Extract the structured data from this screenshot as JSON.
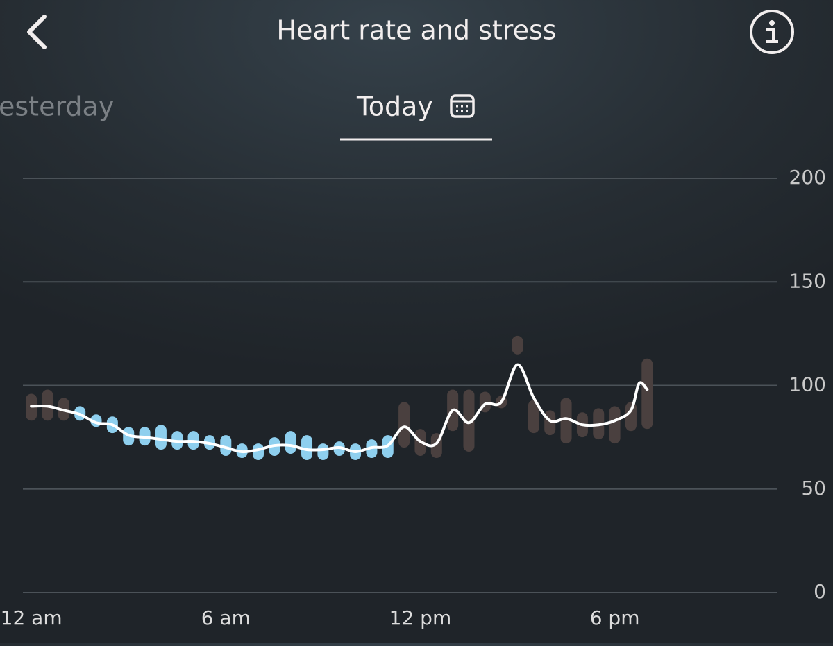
{
  "header": {
    "title": "Heart rate and stress",
    "tabs": [
      "esterday",
      "Today"
    ]
  },
  "chart_data": {
    "type": "line",
    "xlim": [
      -0.26,
      23.02
    ],
    "xticks": [
      {
        "value": 0,
        "label": "12 am"
      },
      {
        "value": 6,
        "label": "6 am"
      },
      {
        "value": 12,
        "label": "12 pm"
      },
      {
        "value": 18,
        "label": "6 pm"
      }
    ],
    "ylim": [
      0,
      200
    ],
    "yticks": [
      0,
      50,
      100,
      150,
      200
    ],
    "grid": true,
    "series": [
      {
        "color": "#ffffff",
        "x": [
          0,
          0.5,
          1,
          1.5,
          2,
          2.5,
          3,
          3.5,
          4,
          4.5,
          5,
          5.5,
          6,
          6.5,
          7,
          7.5,
          8,
          8.5,
          9,
          9.5,
          10,
          10.5,
          11,
          11.5,
          12,
          12.5,
          13,
          13.5,
          14,
          14.5,
          15,
          15.5,
          16,
          16.5,
          17,
          17.5,
          18,
          18.5,
          18.75,
          19
        ],
        "values": [
          90,
          90,
          88,
          86,
          82,
          81,
          76,
          75,
          74,
          73,
          73,
          72,
          70,
          68,
          69,
          71,
          71,
          69,
          69,
          70,
          68,
          70,
          71,
          80,
          73,
          72,
          88,
          82,
          91,
          92,
          110,
          94,
          83,
          84,
          81,
          81,
          83,
          88,
          101,
          98
        ]
      }
    ],
    "bars": {
      "x": [
        0,
        0.5,
        1,
        1.5,
        2,
        2.5,
        3,
        3.5,
        4,
        4.5,
        5,
        5.5,
        6,
        6.5,
        7,
        7.5,
        8,
        8.5,
        9,
        9.5,
        10,
        10.5,
        11,
        11.5,
        12,
        12.5,
        13,
        13.5,
        14,
        14.5,
        15,
        15.5,
        16,
        16.5,
        17,
        17.5,
        18,
        18.5,
        19
      ],
      "low": [
        83,
        83,
        83,
        83,
        80,
        77,
        71,
        71,
        69,
        69,
        69,
        69,
        66,
        65,
        64,
        66,
        67,
        64,
        64,
        66,
        64,
        65,
        65,
        70,
        66,
        65,
        78,
        68,
        87,
        89,
        115,
        77,
        76,
        72,
        75,
        74,
        72,
        78,
        79
      ],
      "high": [
        96,
        98,
        94,
        90,
        86,
        85,
        80,
        80,
        81,
        78,
        78,
        76,
        76,
        72,
        72,
        75,
        78,
        76,
        72,
        73,
        72,
        74,
        76,
        92,
        79,
        77,
        98,
        98,
        97,
        95,
        124,
        93,
        88,
        94,
        87,
        89,
        90,
        92,
        113
      ],
      "colors": [
        "#4a403f",
        "#4a403f",
        "#4a403f",
        "#8ecfee",
        "#8ecfee",
        "#8ecfee",
        "#8ecfee",
        "#8ecfee",
        "#8ecfee",
        "#8ecfee",
        "#8ecfee",
        "#8ecfee",
        "#8ecfee",
        "#8ecfee",
        "#8ecfee",
        "#8ecfee",
        "#8ecfee",
        "#8ecfee",
        "#8ecfee",
        "#8ecfee",
        "#8ecfee",
        "#8ecfee",
        "#8ecfee",
        "#4a403f",
        "#4a403f",
        "#4a403f",
        "#4a403f",
        "#4a403f",
        "#4a403f",
        "#4a403f",
        "#4a403f",
        "#4a403f",
        "#4a403f",
        "#4a403f",
        "#4a403f",
        "#4a403f",
        "#4a403f",
        "#4a403f",
        "#4a403f"
      ]
    }
  }
}
